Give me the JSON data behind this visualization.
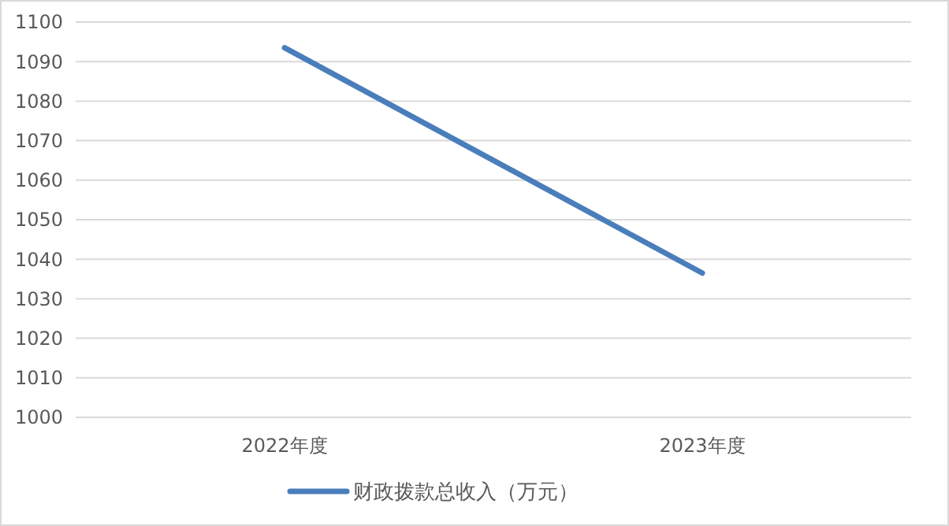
{
  "chart_data": {
    "type": "line",
    "categories": [
      "2022年度",
      "2023年度"
    ],
    "series": [
      {
        "name": "财政拨款总收入（万元）",
        "color": "#4a7ebb",
        "values": [
          1093.5,
          1036.5
        ]
      }
    ],
    "ylim": [
      1000,
      1100
    ],
    "yticks": [
      1000,
      1010,
      1020,
      1030,
      1040,
      1050,
      1060,
      1070,
      1080,
      1090,
      1100
    ],
    "grid": "y",
    "legend": "bottom",
    "marker": "none"
  }
}
